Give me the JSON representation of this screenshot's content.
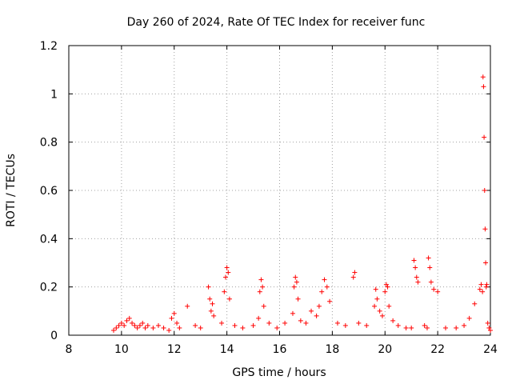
{
  "chart_data": {
    "type": "scatter",
    "title": "Day 260 of 2024, Rate Of TEC Index for receiver func",
    "xlabel": "GPS time / hours",
    "ylabel": "ROTI / TECUs",
    "xlim": [
      8,
      24
    ],
    "ylim": [
      0,
      1.2
    ],
    "xticks": [
      {
        "value": 8,
        "label": "8"
      },
      {
        "value": 10,
        "label": "10"
      },
      {
        "value": 12,
        "label": "12"
      },
      {
        "value": 14,
        "label": "14"
      },
      {
        "value": 16,
        "label": "16"
      },
      {
        "value": 18,
        "label": "18"
      },
      {
        "value": 20,
        "label": "20"
      },
      {
        "value": 22,
        "label": "22"
      },
      {
        "value": 24,
        "label": "24"
      }
    ],
    "yticks": [
      {
        "value": 0,
        "label": "0"
      },
      {
        "value": 0.2,
        "label": "0.2"
      },
      {
        "value": 0.4,
        "label": "0.4"
      },
      {
        "value": 0.6,
        "label": "0.6"
      },
      {
        "value": 0.8,
        "label": "0.8"
      },
      {
        "value": 1.0,
        "label": "1"
      },
      {
        "value": 1.2,
        "label": "1.2"
      }
    ],
    "grid": true,
    "legend": "none",
    "marker": "+",
    "color": "#ff0000",
    "series": [
      {
        "x": [
          9.7,
          9.8,
          9.9,
          10.0,
          10.1,
          10.2,
          10.3,
          10.4,
          10.5,
          10.6,
          10.7,
          10.8,
          10.9,
          11.0,
          11.2,
          11.4,
          11.6,
          11.8,
          11.9,
          12.0,
          12.1,
          12.2,
          12.5,
          12.8,
          13.0,
          13.3,
          13.35,
          13.4,
          13.45,
          13.5,
          13.8,
          13.9,
          13.95,
          14.0,
          14.05,
          14.1,
          14.3,
          14.6,
          15.0,
          15.2,
          15.25,
          15.3,
          15.35,
          15.4,
          15.6,
          15.9,
          16.2,
          16.5,
          16.55,
          16.6,
          16.65,
          16.7,
          16.8,
          17.0,
          17.2,
          17.4,
          17.5,
          17.6,
          17.7,
          17.8,
          17.9,
          18.2,
          18.5,
          18.8,
          18.85,
          19.0,
          19.3,
          19.6,
          19.65,
          19.7,
          19.8,
          19.9,
          20.0,
          20.05,
          20.1,
          20.15,
          20.3,
          20.5,
          20.8,
          21.0,
          21.1,
          21.15,
          21.2,
          21.25,
          21.5,
          21.6,
          21.65,
          21.7,
          21.75,
          21.85,
          22.0,
          22.3,
          22.7,
          23.0,
          23.2,
          23.4,
          23.6,
          23.65,
          23.7,
          23.72,
          23.74,
          23.76,
          23.78,
          23.8,
          23.82,
          23.84,
          23.86,
          23.9,
          23.95,
          24.0
        ],
        "y": [
          0.02,
          0.03,
          0.04,
          0.05,
          0.04,
          0.06,
          0.07,
          0.05,
          0.04,
          0.03,
          0.04,
          0.05,
          0.03,
          0.04,
          0.03,
          0.04,
          0.03,
          0.02,
          0.07,
          0.09,
          0.05,
          0.03,
          0.12,
          0.04,
          0.03,
          0.2,
          0.15,
          0.1,
          0.13,
          0.08,
          0.05,
          0.18,
          0.24,
          0.28,
          0.26,
          0.15,
          0.04,
          0.03,
          0.04,
          0.07,
          0.18,
          0.23,
          0.2,
          0.12,
          0.05,
          0.03,
          0.05,
          0.09,
          0.2,
          0.24,
          0.22,
          0.15,
          0.06,
          0.05,
          0.1,
          0.08,
          0.12,
          0.18,
          0.23,
          0.2,
          0.14,
          0.05,
          0.04,
          0.24,
          0.26,
          0.05,
          0.04,
          0.12,
          0.19,
          0.15,
          0.1,
          0.08,
          0.18,
          0.21,
          0.2,
          0.12,
          0.06,
          0.04,
          0.03,
          0.03,
          0.31,
          0.28,
          0.24,
          0.22,
          0.04,
          0.03,
          0.32,
          0.28,
          0.22,
          0.19,
          0.18,
          0.03,
          0.03,
          0.04,
          0.07,
          0.13,
          0.19,
          0.21,
          0.18,
          1.07,
          1.03,
          0.82,
          0.6,
          0.44,
          0.3,
          0.2,
          0.21,
          0.05,
          0.03,
          0.02
        ]
      }
    ]
  }
}
